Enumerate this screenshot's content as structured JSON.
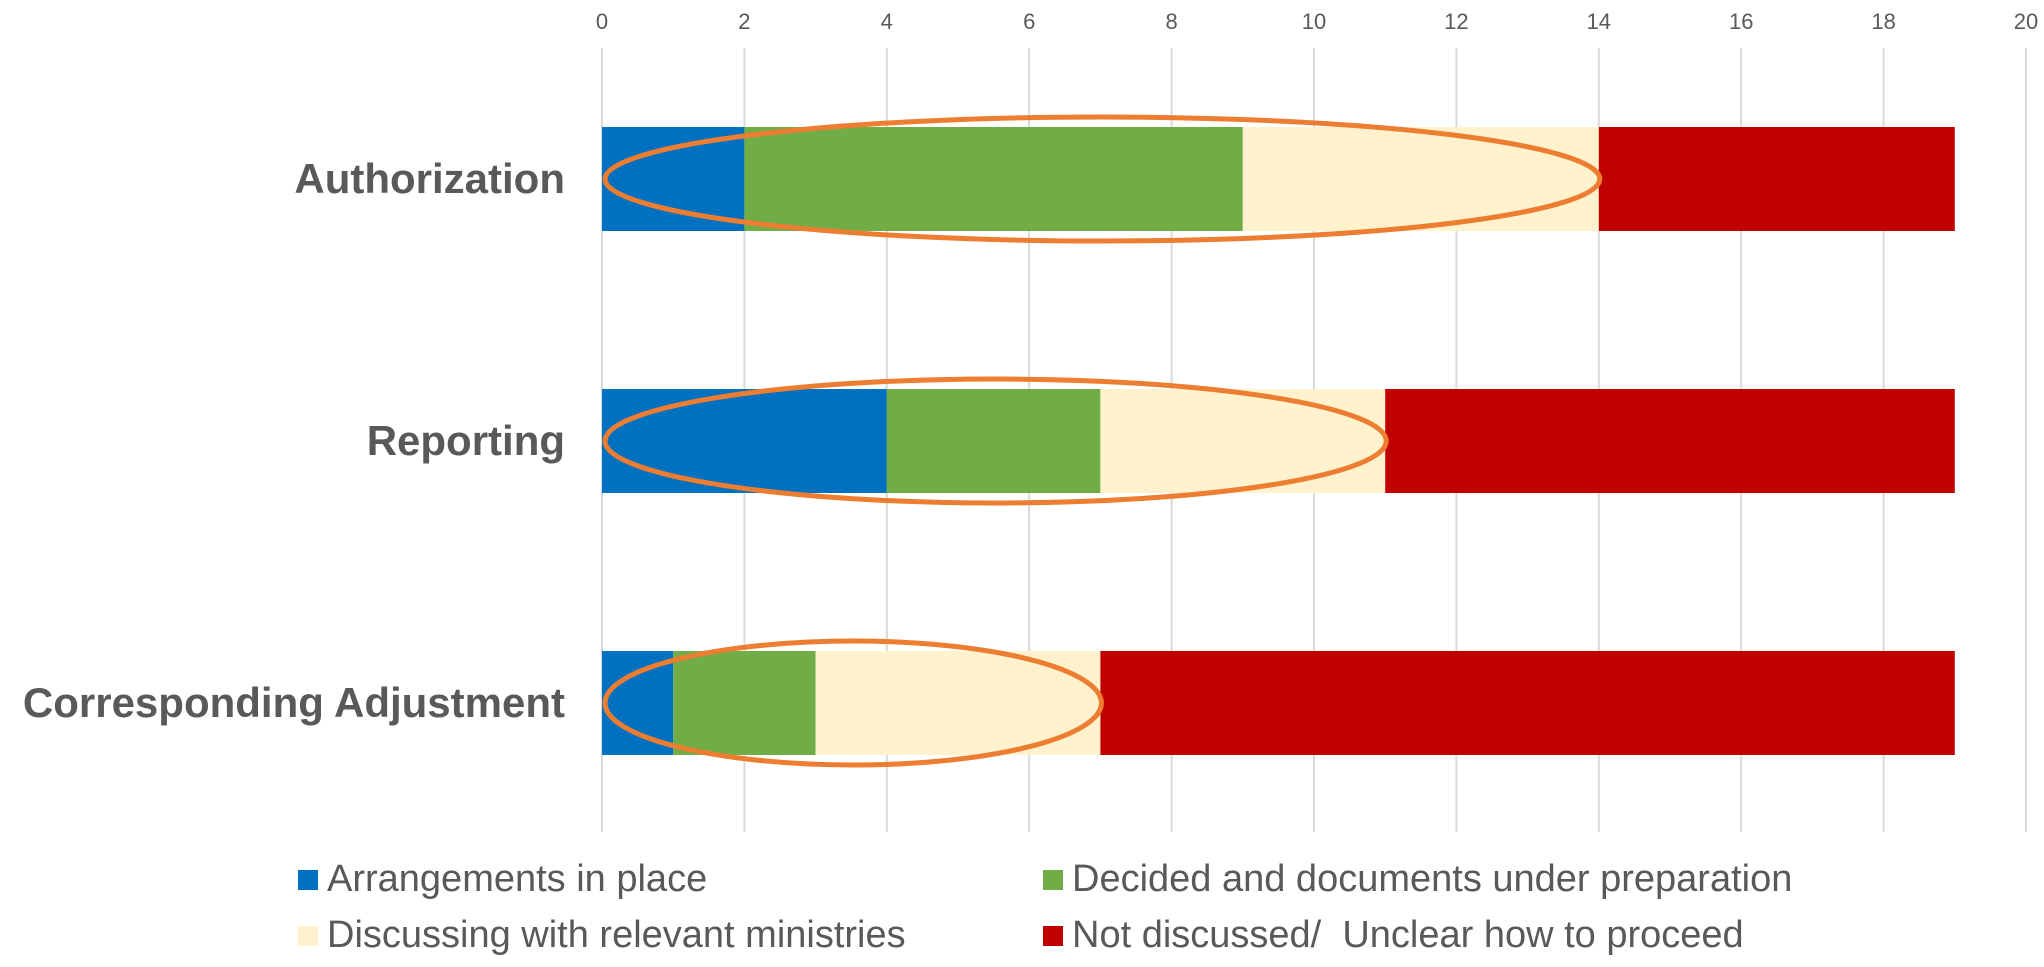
{
  "chart_data": {
    "type": "bar",
    "orientation": "horizontal",
    "stacked": true,
    "categories": [
      "Authorization",
      "Reporting",
      "Corresponding Adjustment"
    ],
    "series": [
      {
        "name": "Arrangements in place",
        "color": "#0070C0",
        "values": [
          2,
          4,
          1
        ]
      },
      {
        "name": "Decided and documents under preparation",
        "color": "#70AD47",
        "values": [
          7,
          3,
          2
        ]
      },
      {
        "name": "Discussing with relevant ministries",
        "color": "#FFF2CC",
        "values": [
          5,
          4,
          4
        ]
      },
      {
        "name": "Not discussed/  Unclear how to proceed",
        "color": "#C00000",
        "values": [
          5,
          8,
          12
        ]
      }
    ],
    "xlim": [
      0,
      20
    ],
    "x_ticks": [
      "0",
      "2",
      "4",
      "6",
      "8",
      "10",
      "12",
      "14",
      "16",
      "18",
      "20"
    ],
    "x_axis_position": "top",
    "grid": true,
    "legend_position": "bottom",
    "annotations": [
      {
        "type": "ellipse",
        "category": "Authorization",
        "x_range": [
          0,
          14
        ],
        "color": "#ED7D31"
      },
      {
        "type": "ellipse",
        "category": "Reporting",
        "x_range": [
          0,
          11
        ],
        "color": "#ED7D31"
      },
      {
        "type": "ellipse",
        "category": "Corresponding Adjustment",
        "x_range": [
          0,
          7
        ],
        "color": "#ED7D31"
      }
    ],
    "colors": {
      "grid": "#D9D9D9",
      "label_text": "#595959",
      "tick_text": "#595959"
    }
  }
}
